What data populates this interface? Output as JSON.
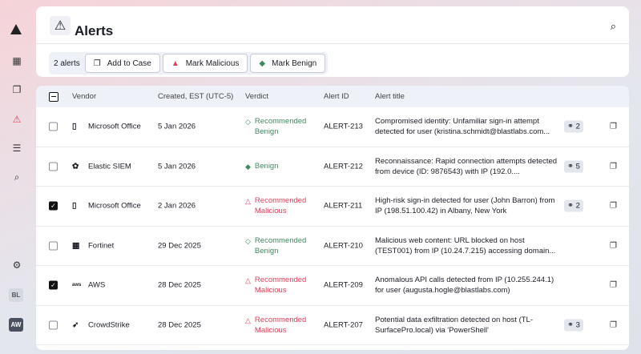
{
  "header": {
    "title": "Alerts"
  },
  "toolbar": {
    "count": "2 alerts",
    "add_to_case": "Add to Case",
    "mark_malicious": "Mark Malicious",
    "mark_benign": "Mark Benign"
  },
  "sidebar": {
    "avatars": [
      "BL",
      "AW"
    ]
  },
  "columns": [
    "Vendor",
    "Created, EST (UTC-5)",
    "Verdict",
    "Alert ID",
    "Alert title"
  ],
  "colors": {
    "benign": "#3f8a5e",
    "malicious": "#e0405a"
  },
  "rows": [
    {
      "checked": false,
      "vendor": "Microsoft Office",
      "created": "5 Jan 2026",
      "verdict": [
        "Recommended",
        "Benign"
      ],
      "vtype": "rec-benign",
      "id": "ALERT-213",
      "title": "Compromised identity: Unfamiliar sign-in attempt detected for user (kristina.schmidt@blastlabs.com...",
      "links": "2"
    },
    {
      "checked": false,
      "vendor": "Elastic SIEM",
      "created": "5 Jan 2026",
      "verdict": [
        "Benign",
        ""
      ],
      "vtype": "benign",
      "id": "ALERT-212",
      "title": "Reconnaissance: Rapid connection attempts detected from device (ID: 9876543) with IP (192.0....",
      "links": "5"
    },
    {
      "checked": true,
      "vendor": "Microsoft Office",
      "created": "2 Jan 2026",
      "verdict": [
        "Recommended",
        "Malicious"
      ],
      "vtype": "rec-mal",
      "id": "ALERT-211",
      "title": "High-risk sign-in detected for user (John Barron) from IP (198.51.100.42) in Albany, New York",
      "links": "2"
    },
    {
      "checked": false,
      "vendor": "Fortinet",
      "created": "29 Dec 2025",
      "verdict": [
        "Recommended",
        "Benign"
      ],
      "vtype": "rec-benign",
      "id": "ALERT-210",
      "title": "Malicious web content: URL blocked on host (TEST001) from IP (10.24.7.215) accessing domain...",
      "links": null
    },
    {
      "checked": true,
      "vendor": "AWS",
      "created": "28 Dec 2025",
      "verdict": [
        "Recommended",
        "Malicious"
      ],
      "vtype": "rec-mal",
      "id": "ALERT-209",
      "title": "Anomalous API calls detected from IP (10.255.244.1) for user (augusta.hogle@blastlabs.com)",
      "links": null
    },
    {
      "checked": false,
      "vendor": "CrowdStrike",
      "created": "28 Dec 2025",
      "verdict": [
        "Recommended",
        "Malicious"
      ],
      "vtype": "rec-mal",
      "id": "ALERT-207",
      "title": "Potential data exfiltration detected on host (TL-SurfacePro.local) via 'PowerShell'",
      "links": "3"
    }
  ]
}
